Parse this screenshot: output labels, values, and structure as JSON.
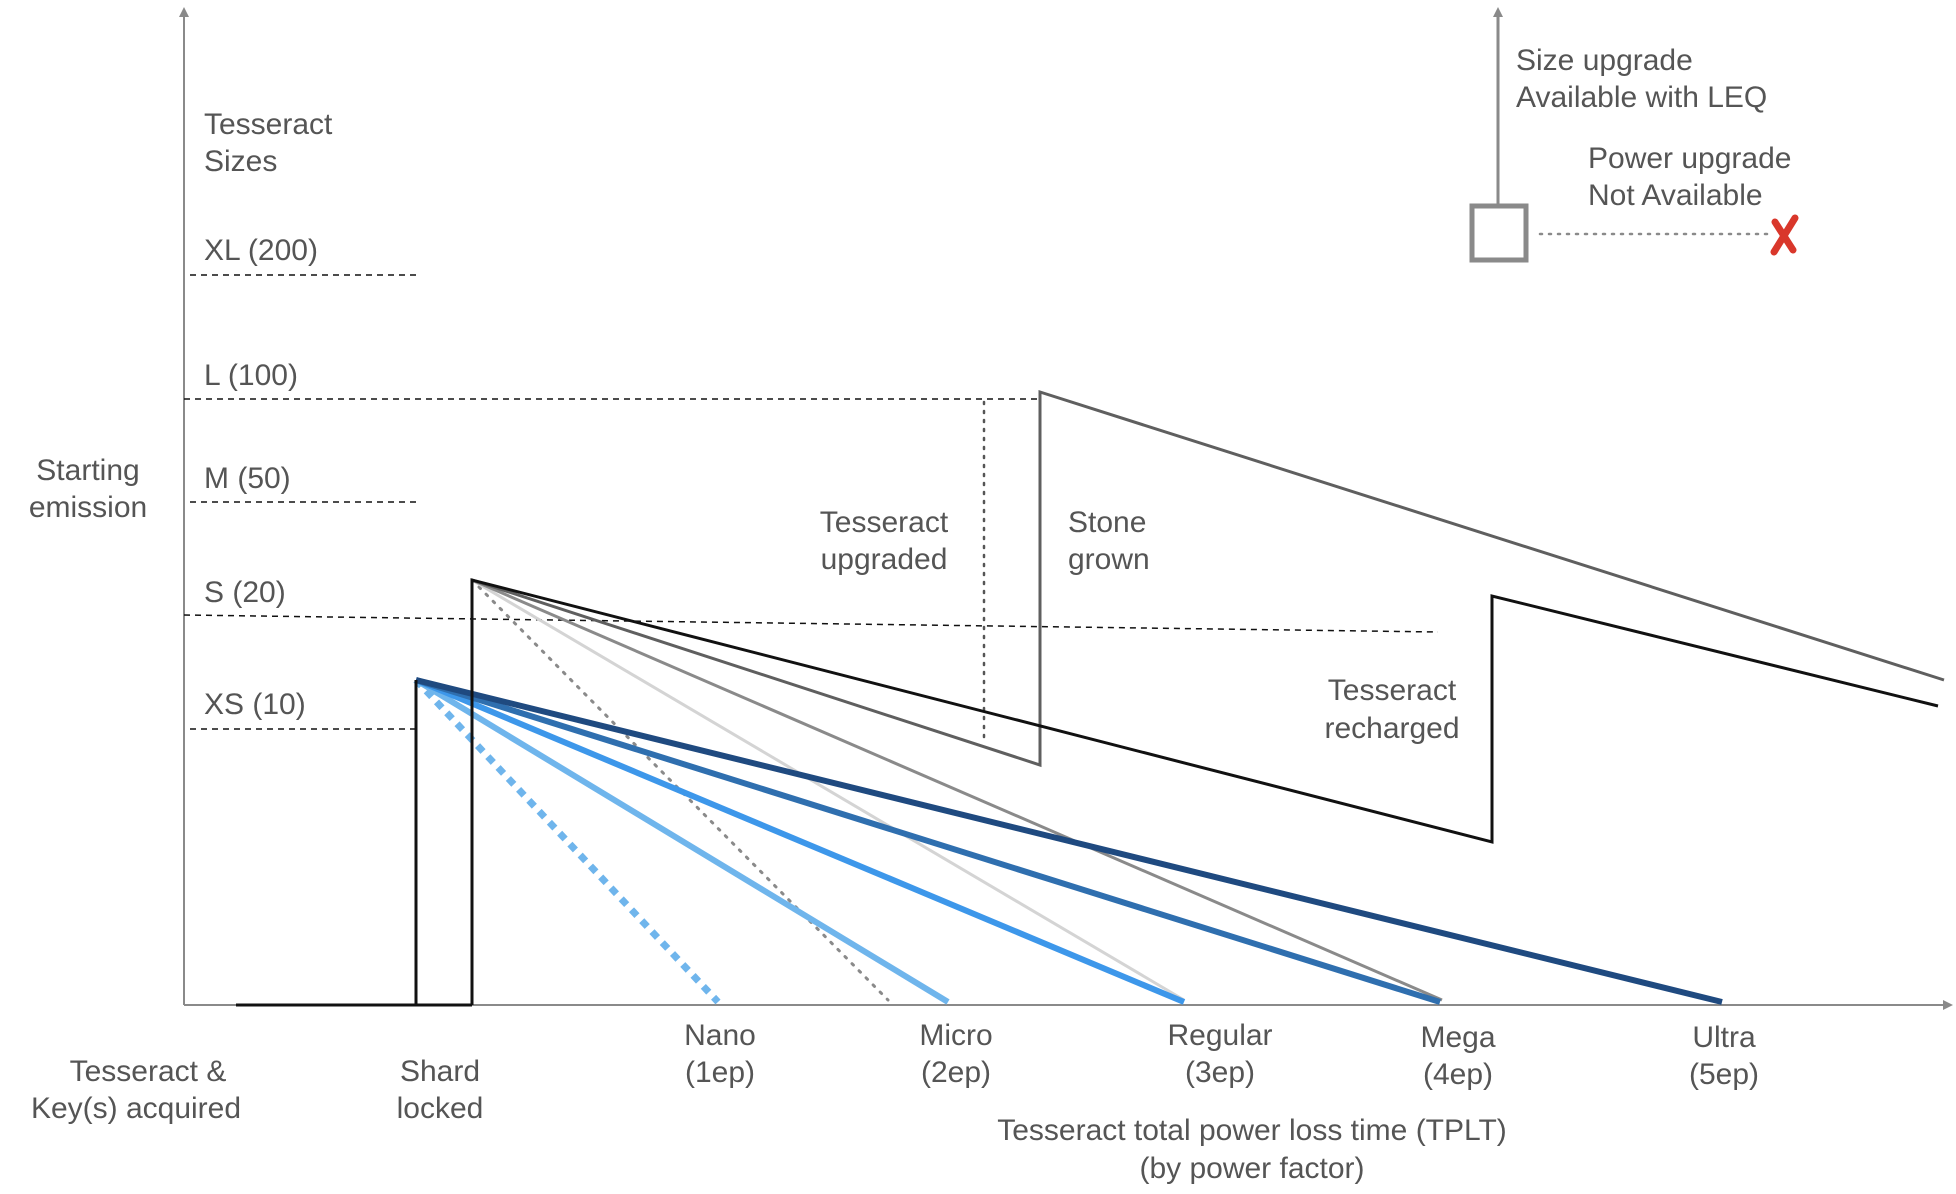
{
  "y_axis": {
    "title_line1": "Starting",
    "title_line2": "emission"
  },
  "sizes": {
    "heading_line1": "Tesseract",
    "heading_line2": "Sizes",
    "levels": [
      "XL (200)",
      "L (100)",
      "M (50)",
      "S (20)",
      "XS (10)"
    ]
  },
  "x_axis": {
    "stage_acquired_line1": "Tesseract &",
    "stage_acquired_line2": "Key(s) acquired",
    "stage_locked_line1": "Shard",
    "stage_locked_line2": "locked",
    "factors": [
      {
        "name": "Nano",
        "ep": "(1ep)"
      },
      {
        "name": "Micro",
        "ep": "(2ep)"
      },
      {
        "name": "Regular",
        "ep": "(3ep)"
      },
      {
        "name": "Mega",
        "ep": "(4ep)"
      },
      {
        "name": "Ultra",
        "ep": "(5ep)"
      }
    ],
    "title_line1": "Tesseract total power loss time (TPLT)",
    "title_line2": "(by power factor)"
  },
  "annotations": {
    "upgraded_line1": "Tesseract",
    "upgraded_line2": "upgraded",
    "stone_line1": "Stone",
    "stone_line2": "grown",
    "recharged_line1": "Tesseract",
    "recharged_line2": "recharged"
  },
  "legend": {
    "size_line1": "Size upgrade",
    "size_line2": "Available with LEQ",
    "power_line1": "Power upgrade",
    "power_line2": "Not Available",
    "cross_icon": "cross-icon",
    "cross_color": "#d9372b"
  },
  "colors": {
    "axis": "#8a8a8a",
    "text": "#555555",
    "black": "#111111",
    "dark_gray": "#5f5f5f",
    "mid_gray": "#8a8a8a",
    "light_gray": "#d4d4d4",
    "light_blue": "#6fb5ec",
    "blue": "#3d97ea",
    "mid_blue": "#2f6faf",
    "dark_blue": "#1f4a80"
  }
}
